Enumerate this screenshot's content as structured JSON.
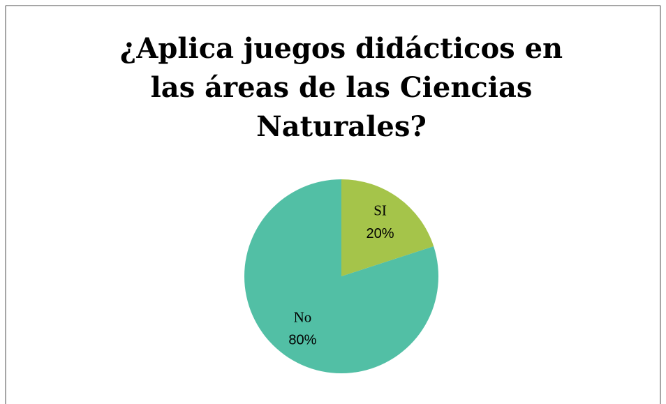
{
  "chart_data": {
    "type": "pie",
    "title": "¿Aplica juegos didácticos en las áreas de las Ciencias Naturales?",
    "categories": [
      "SI",
      "No"
    ],
    "values": [
      20,
      80
    ],
    "value_labels": [
      "20%",
      "80%"
    ],
    "colors": [
      "#a5c44a",
      "#52bfa5"
    ]
  }
}
